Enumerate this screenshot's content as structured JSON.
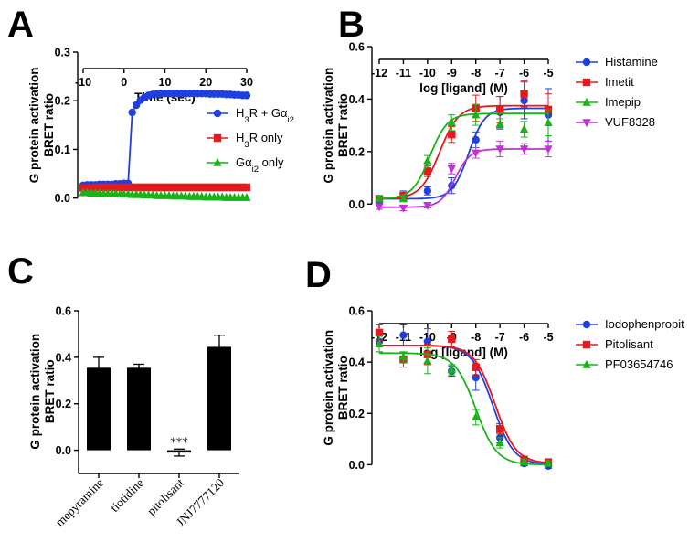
{
  "figure_labels": {
    "A": "A",
    "B": "B",
    "C": "C",
    "D": "D"
  },
  "chart_data": [
    {
      "panel": "A",
      "type": "line",
      "title": "",
      "xlabel": "Time (sec)",
      "ylabel": [
        "G protein activation",
        "BRET ratio"
      ],
      "xlim": [
        -10,
        30
      ],
      "ylim": [
        -0.01,
        0.3
      ],
      "xticks": [
        -10,
        0,
        10,
        20,
        30
      ],
      "yticks": [
        0.0,
        0.1,
        0.2,
        0.3
      ],
      "xtick_labels": [
        "-10",
        "0",
        "10",
        "20",
        "30"
      ],
      "ytick_labels": [
        "0.0",
        "0.1",
        "0.2",
        "0.3"
      ],
      "legend_position": "right",
      "series": [
        {
          "name": "H3R + Gαi2",
          "legend_label": {
            "pre": "H",
            "sub1": "3",
            "mid": "R + Gα",
            "sub2": "i2",
            "post": ""
          },
          "color": "#1f3fe0",
          "marker": "circle",
          "x": [
            -10,
            -9,
            -8,
            -7,
            -6,
            -5,
            -4,
            -3,
            -2,
            -1,
            0,
            1,
            2,
            3,
            4,
            5,
            6,
            7,
            8,
            9,
            10,
            11,
            12,
            13,
            14,
            15,
            16,
            17,
            18,
            19,
            20,
            21,
            22,
            23,
            24,
            25,
            26,
            27,
            28,
            29,
            30
          ],
          "values": [
            0.026,
            0.027,
            0.027,
            0.027,
            0.028,
            0.028,
            0.028,
            0.028,
            0.029,
            0.029,
            0.03,
            0.03,
            0.176,
            0.191,
            0.201,
            0.207,
            0.211,
            0.213,
            0.214,
            0.215,
            0.215,
            0.215,
            0.215,
            0.215,
            0.215,
            0.215,
            0.215,
            0.215,
            0.215,
            0.215,
            0.215,
            0.214,
            0.214,
            0.214,
            0.214,
            0.213,
            0.213,
            0.212,
            0.212,
            0.211,
            0.211
          ]
        },
        {
          "name": "H3R only",
          "legend_label": {
            "pre": "H",
            "sub1": "3",
            "mid": "R only",
            "sub2": "",
            "post": ""
          },
          "color": "#e41a1c",
          "marker": "square",
          "x": [
            -10,
            -9,
            -8,
            -7,
            -6,
            -5,
            -4,
            -3,
            -2,
            -1,
            0,
            1,
            2,
            3,
            4,
            5,
            6,
            7,
            8,
            9,
            10,
            11,
            12,
            13,
            14,
            15,
            16,
            17,
            18,
            19,
            20,
            21,
            22,
            23,
            24,
            25,
            26,
            27,
            28,
            29,
            30
          ],
          "values": [
            0.021,
            0.021,
            0.021,
            0.022,
            0.022,
            0.022,
            0.022,
            0.022,
            0.022,
            0.022,
            0.022,
            0.022,
            0.022,
            0.022,
            0.022,
            0.022,
            0.022,
            0.022,
            0.022,
            0.022,
            0.022,
            0.022,
            0.022,
            0.022,
            0.022,
            0.022,
            0.022,
            0.022,
            0.022,
            0.022,
            0.022,
            0.022,
            0.022,
            0.022,
            0.022,
            0.022,
            0.022,
            0.022,
            0.022,
            0.022,
            0.022
          ]
        },
        {
          "name": "Gαi2 only",
          "legend_label": {
            "pre": "Gα",
            "sub1": "i2",
            "mid": " only",
            "sub2": "",
            "post": ""
          },
          "color": "#19b319",
          "marker": "triangle",
          "x": [
            -10,
            -9,
            -8,
            -7,
            -6,
            -5,
            -4,
            -3,
            -2,
            -1,
            0,
            1,
            2,
            3,
            4,
            5,
            6,
            7,
            8,
            9,
            10,
            11,
            12,
            13,
            14,
            15,
            16,
            17,
            18,
            19,
            20,
            21,
            22,
            23,
            24,
            25,
            26,
            27,
            28,
            29,
            30
          ],
          "values": [
            0.011,
            0.011,
            0.01,
            0.01,
            0.01,
            0.009,
            0.009,
            0.009,
            0.009,
            0.008,
            0.008,
            0.008,
            0.007,
            0.007,
            0.007,
            0.006,
            0.006,
            0.006,
            0.005,
            0.005,
            0.005,
            0.005,
            0.004,
            0.004,
            0.004,
            0.004,
            0.003,
            0.003,
            0.003,
            0.003,
            0.002,
            0.002,
            0.002,
            0.002,
            0.002,
            0.001,
            0.001,
            0.001,
            0.001,
            0.001,
            0.001
          ]
        }
      ]
    },
    {
      "panel": "B",
      "type": "scatter",
      "title": "",
      "xlabel": "log [ligand] (M)",
      "ylabel": [
        "G protein activation",
        "BRET ratio"
      ],
      "xlim": [
        -12,
        -5
      ],
      "ylim": [
        -0.02,
        0.6
      ],
      "xticks": [
        -12,
        -11,
        -10,
        -9,
        -8,
        -7,
        -6,
        -5
      ],
      "yticks": [
        0.0,
        0.2,
        0.4,
        0.6
      ],
      "xtick_labels": [
        "-12",
        "-11",
        "-10",
        "-9",
        "-8",
        "-7",
        "-6",
        "-5"
      ],
      "ytick_labels": [
        "0.0",
        "0.2",
        "0.4",
        "0.6"
      ],
      "legend_position": "top-right",
      "series": [
        {
          "name": "Histamine",
          "color": "#1f3fe0",
          "marker": "circle",
          "x": [
            -12,
            -11,
            -10,
            -9,
            -8,
            -7,
            -6,
            -5
          ],
          "values": [
            0.01,
            0.03,
            0.05,
            0.07,
            0.245,
            0.35,
            0.395,
            0.34
          ],
          "errors": [
            0.01,
            0.02,
            0.015,
            0.03,
            0.03,
            0.06,
            0.07,
            0.1
          ],
          "fit": {
            "bottom": 0.02,
            "top": 0.365,
            "logEC50": -8.3,
            "hill": 1.3
          }
        },
        {
          "name": "Imetit",
          "color": "#e41a1c",
          "marker": "square",
          "x": [
            -12,
            -11,
            -10,
            -9,
            -8,
            -7,
            -6,
            -5
          ],
          "values": [
            0.02,
            0.03,
            0.125,
            0.265,
            0.365,
            0.36,
            0.42,
            0.36
          ],
          "errors": [
            0.01,
            0.015,
            0.02,
            0.03,
            0.05,
            0.05,
            0.05,
            0.06
          ],
          "fit": {
            "bottom": 0.02,
            "top": 0.375,
            "logEC50": -9.5,
            "hill": 1.1
          }
        },
        {
          "name": "Imepip",
          "color": "#19b319",
          "marker": "triangle",
          "x": [
            -12,
            -11,
            -10,
            -9,
            -8,
            -7,
            -6,
            -5
          ],
          "values": [
            0.02,
            0.02,
            0.165,
            0.31,
            0.34,
            0.305,
            0.285,
            0.31
          ],
          "errors": [
            0.01,
            0.01,
            0.02,
            0.03,
            0.04,
            0.02,
            0.03,
            0.05
          ],
          "fit": {
            "bottom": 0.02,
            "top": 0.345,
            "logEC50": -9.9,
            "hill": 1.2
          }
        },
        {
          "name": "VUF8328",
          "color": "#c133d6",
          "marker": "triangle-down",
          "x": [
            -12,
            -11,
            -10,
            -9,
            -8,
            -7,
            -6,
            -5
          ],
          "values": [
            -0.01,
            -0.015,
            -0.005,
            0.135,
            0.195,
            0.21,
            0.21,
            0.21
          ],
          "errors": [
            0.01,
            0.01,
            0.01,
            0.02,
            0.02,
            0.03,
            0.02,
            0.03
          ],
          "fit": {
            "bottom": -0.012,
            "top": 0.21,
            "logEC50": -8.85,
            "hill": 1.4
          }
        }
      ]
    },
    {
      "panel": "C",
      "type": "bar",
      "title": "",
      "xlabel": "",
      "ylabel": [
        "G protein activation",
        "BRET ratio"
      ],
      "ylim": [
        -0.1,
        0.6
      ],
      "yticks": [
        0.0,
        0.2,
        0.4,
        0.6
      ],
      "ytick_labels": [
        "0.0",
        "0.2",
        "0.4",
        "0.6"
      ],
      "categories": [
        "mepyramine",
        "tiotidine",
        "pitolisant",
        "JNJ7777120"
      ],
      "values": [
        0.355,
        0.355,
        -0.01,
        0.445
      ],
      "errors": [
        0.045,
        0.015,
        0.015,
        0.05
      ],
      "color": "#000000",
      "annotations": [
        "",
        "",
        "***",
        ""
      ]
    },
    {
      "panel": "D",
      "type": "scatter",
      "title": "",
      "xlabel": "log [ligand] (M)",
      "ylabel": [
        "G protein activation",
        "BRET ratio"
      ],
      "xlim": [
        -12,
        -5
      ],
      "ylim": [
        -0.02,
        0.6
      ],
      "xticks": [
        -12,
        -11,
        -10,
        -9,
        -8,
        -7,
        -6,
        -5
      ],
      "yticks": [
        0.0,
        0.2,
        0.4,
        0.6
      ],
      "xtick_labels": [
        "-12",
        "-11",
        "-10",
        "-9",
        "-8",
        "-7",
        "-6",
        "-5"
      ],
      "ytick_labels": [
        "0.0",
        "0.2",
        "0.4",
        "0.6"
      ],
      "legend_position": "top-right",
      "series": [
        {
          "name": "Iodophenpropit",
          "color": "#1f3fe0",
          "marker": "circle",
          "x": [
            -12,
            -11,
            -10,
            -9,
            -8,
            -7,
            -6,
            -5
          ],
          "values": [
            0.48,
            0.505,
            0.48,
            0.365,
            0.34,
            0.105,
            0.005,
            -0.005
          ],
          "errors": [
            0.04,
            0.04,
            0.05,
            0.02,
            0.05,
            0.02,
            0.01,
            0.01
          ],
          "fit": {
            "bottom": 0.0,
            "top": 0.465,
            "logEC50": -7.3,
            "hill": -1.0
          }
        },
        {
          "name": "Pitolisant",
          "color": "#e41a1c",
          "marker": "square",
          "x": [
            -12,
            -11,
            -10,
            -9,
            -8,
            -7,
            -6,
            -5
          ],
          "values": [
            0.515,
            0.41,
            0.43,
            0.49,
            0.38,
            0.14,
            0.02,
            0.01
          ],
          "errors": [
            0.03,
            0.03,
            0.04,
            0.03,
            0.03,
            0.02,
            0.01,
            0.01
          ],
          "fit": {
            "bottom": 0.005,
            "top": 0.465,
            "logEC50": -7.2,
            "hill": -1.0
          }
        },
        {
          "name": "PF03654746",
          "color": "#19b319",
          "marker": "triangle",
          "x": [
            -12,
            -11,
            -10,
            -9,
            -8,
            -7,
            -6,
            -5
          ],
          "values": [
            0.47,
            0.42,
            0.405,
            0.37,
            0.185,
            0.085,
            0.01,
            0.005
          ],
          "errors": [
            0.03,
            0.02,
            0.05,
            0.02,
            0.03,
            0.02,
            0.01,
            0.01
          ],
          "fit": {
            "bottom": 0.0,
            "top": 0.435,
            "logEC50": -8.0,
            "hill": -1.0
          }
        }
      ]
    }
  ]
}
